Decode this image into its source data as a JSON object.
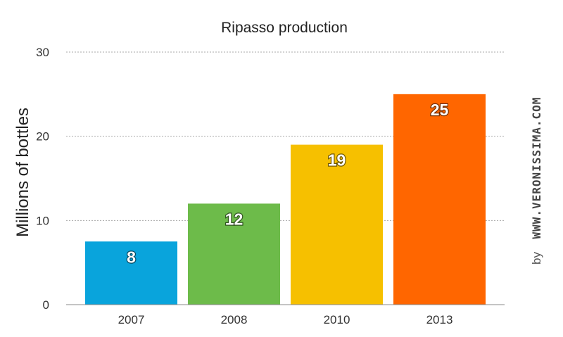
{
  "chart_data": {
    "type": "bar",
    "title": "Ripasso production",
    "ylabel": "Millions of bottles",
    "xlabel": "",
    "categories": [
      "2007",
      "2008",
      "2010",
      "2013"
    ],
    "values": [
      7.5,
      12,
      19,
      25
    ],
    "data_labels": [
      "8",
      "12",
      "19",
      "25"
    ],
    "colors": [
      "#09a4dc",
      "#6dbb4a",
      "#f6c000",
      "#ff6600"
    ],
    "ylim": [
      0,
      30
    ],
    "yticks": [
      0,
      10,
      20,
      30
    ],
    "ytick_labels": [
      "0",
      "10",
      "20",
      "30"
    ],
    "grid": true,
    "legend": "none"
  },
  "watermark": {
    "by": "by",
    "site": "WWW.VERONISSIMA.COM"
  }
}
